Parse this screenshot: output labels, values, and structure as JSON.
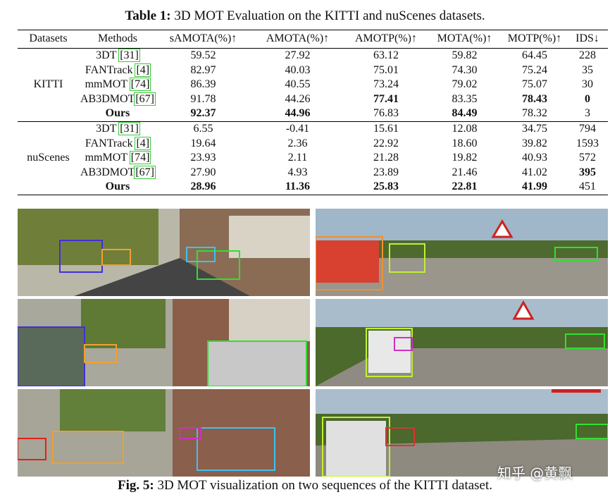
{
  "table": {
    "caption_label": "Table 1:",
    "caption": "3D MOT Evaluation on the KITTI and nuScenes datasets.",
    "header": [
      "Datasets",
      "Methods",
      "sAMOTA(%)↑",
      "AMOTA(%)↑",
      "AMOTP(%)↑",
      "MOTA(%)↑",
      "MOTP(%)↑",
      "IDS↓"
    ],
    "groups": [
      {
        "dataset": "KITTI",
        "rows": [
          {
            "method": "3DT",
            "ref": "31",
            "values": [
              "59.52",
              "27.92",
              "63.12",
              "59.82",
              "64.45",
              "228"
            ]
          },
          {
            "method": "FANTrack",
            "ref": "4",
            "values": [
              "82.97",
              "40.03",
              "75.01",
              "74.30",
              "75.24",
              "35"
            ]
          },
          {
            "method": "mmMOT",
            "ref": "74",
            "values": [
              "86.39",
              "40.55",
              "73.24",
              "79.02",
              "75.07",
              "30"
            ]
          },
          {
            "method": "AB3DMOT",
            "ref": "67",
            "values": [
              "91.78",
              "44.26",
              "77.41",
              "83.35",
              "78.43",
              "0"
            ]
          },
          {
            "method": "Ours",
            "values": [
              "92.37",
              "44.96",
              "76.83",
              "84.49",
              "78.32",
              "3"
            ]
          }
        ]
      },
      {
        "dataset": "nuScenes",
        "rows": [
          {
            "method": "3DT",
            "ref": "31",
            "values": [
              "6.55",
              "-0.41",
              "15.61",
              "12.08",
              "34.75",
              "794"
            ]
          },
          {
            "method": "FANTrack",
            "ref": "4",
            "values": [
              "19.64",
              "2.36",
              "22.92",
              "18.60",
              "39.82",
              "1593"
            ]
          },
          {
            "method": "mmMOT",
            "ref": "74",
            "values": [
              "23.93",
              "2.11",
              "21.28",
              "19.82",
              "40.93",
              "572"
            ]
          },
          {
            "method": "AB3DMOT",
            "ref": "67",
            "values": [
              "27.90",
              "4.93",
              "23.89",
              "21.46",
              "41.02",
              "395"
            ]
          },
          {
            "method": "Ours",
            "values": [
              "28.96",
              "11.36",
              "25.83",
              "22.81",
              "41.99",
              "451"
            ]
          }
        ]
      }
    ]
  },
  "figure": {
    "caption_label": "Fig. 5:",
    "caption": "3D MOT visualization on two sequences of the KITTI dataset."
  },
  "watermark": "知乎 @黄飘"
}
